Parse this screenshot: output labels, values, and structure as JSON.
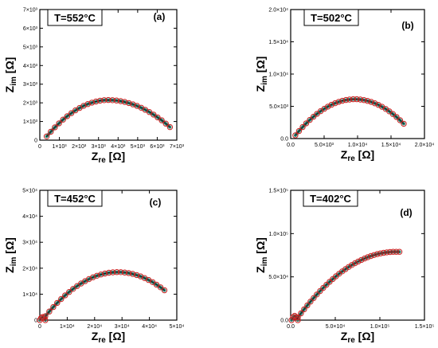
{
  "colors": {
    "marker_stroke": "#cc2222",
    "fit_line": "#2a8a7a",
    "axis": "#000000"
  },
  "chart_data": [
    {
      "type": "scatter",
      "panel_label": "(a)",
      "temperature_label": "T=552°C",
      "xlabel": {
        "main": "Z",
        "sub": "re",
        "unit": " [Ω]"
      },
      "ylabel": {
        "main": "Z",
        "sub": "im",
        "unit": " [Ω]"
      },
      "xlim": [
        0,
        7000
      ],
      "ylim": [
        0,
        7000
      ],
      "x_ticks": [
        0,
        1000,
        2000,
        3000,
        4000,
        5000,
        6000,
        7000
      ],
      "x_tick_labels": [
        "0",
        "1×10³",
        "2×10³",
        "3×10³",
        "4×10³",
        "5×10³",
        "6×10³",
        "7×10³"
      ],
      "y_ticks": [
        0,
        1000,
        2000,
        3000,
        4000,
        5000,
        6000,
        7000
      ],
      "y_tick_labels": [
        "0",
        "1×10³",
        "2×10³",
        "3×10³",
        "4×10³",
        "5×10³",
        "6×10³",
        "7×10³"
      ],
      "arc": {
        "x_start": 350,
        "x_end": 6650,
        "x_peak": 3500,
        "y_peak": 2150,
        "y_start": 200,
        "y_end": 700
      },
      "points": 30
    },
    {
      "type": "scatter",
      "panel_label": "(b)",
      "temperature_label": "T=502°C",
      "xlabel": {
        "main": "Z",
        "sub": "re",
        "unit": " [Ω]"
      },
      "ylabel": {
        "main": "Z",
        "sub": "im",
        "unit": " [Ω]"
      },
      "xlim": [
        0,
        20000
      ],
      "ylim": [
        0,
        20000
      ],
      "x_ticks": [
        0,
        5000,
        10000,
        15000,
        20000
      ],
      "x_tick_labels": [
        "0.0",
        "5.0×10³",
        "1.0×10⁴",
        "1.5×10⁴",
        "2.0×10⁴"
      ],
      "y_ticks": [
        0,
        5000,
        10000,
        15000,
        20000
      ],
      "y_tick_labels": [
        "0.0",
        "5.0×10³",
        "1.0×10⁴",
        "1.5×10⁴",
        "2.0×10⁴"
      ],
      "arc": {
        "x_start": 700,
        "x_end": 16900,
        "x_peak": 9600,
        "y_peak": 6100,
        "y_start": 500,
        "y_end": 2300
      },
      "points": 30
    },
    {
      "type": "scatter",
      "panel_label": "(c)",
      "temperature_label": "T=452°C",
      "xlabel": {
        "main": "Z",
        "sub": "re",
        "unit": " [Ω]"
      },
      "ylabel": {
        "main": "Z",
        "sub": "im",
        "unit": " [Ω]"
      },
      "xlim": [
        0,
        50000
      ],
      "ylim": [
        0,
        50000
      ],
      "x_ticks": [
        0,
        10000,
        20000,
        30000,
        40000,
        50000
      ],
      "x_tick_labels": [
        "0",
        "1×10⁴",
        "2×10⁴",
        "3×10⁴",
        "4×10⁴",
        "5×10⁴"
      ],
      "y_ticks": [
        0,
        10000,
        20000,
        30000,
        40000,
        50000
      ],
      "y_tick_labels": [
        "0",
        "1×10⁴",
        "2×10⁴",
        "3×10⁴",
        "4×10⁴",
        "5×10⁴"
      ],
      "arc": {
        "x_start": 2000,
        "x_end": 45500,
        "x_peak": 28500,
        "y_peak": 18500,
        "y_start": 1500,
        "y_end": 11500
      },
      "pre_arc": {
        "x_start": 0,
        "x_end": 2000,
        "y_peak": 1200
      },
      "points": 30
    },
    {
      "type": "scatter",
      "panel_label": "(d)",
      "temperature_label": "T=402°C",
      "xlabel": {
        "main": "Z",
        "sub": "re",
        "unit": " [Ω]"
      },
      "ylabel": {
        "main": "Z",
        "sub": "im",
        "unit": " [Ω]"
      },
      "xlim": [
        0,
        150000
      ],
      "ylim": [
        0,
        150000
      ],
      "x_ticks": [
        0,
        50000,
        100000,
        150000
      ],
      "x_tick_labels": [
        "0.0",
        "5.0×10⁴",
        "1.0×10⁵",
        "1.5×10⁵"
      ],
      "y_ticks": [
        0,
        50000,
        100000,
        150000
      ],
      "y_tick_labels": [
        "0.0",
        "5.0×10⁴",
        "1.0×10⁵",
        "1.5×10⁵"
      ],
      "arc": {
        "x_start": 8000,
        "x_end": 122000,
        "x_peak": 118000,
        "y_peak": 79000,
        "y_start": 3000,
        "y_end": 79000
      },
      "pre_arc": {
        "x_start": 1000,
        "x_end": 8000,
        "y_peak": 5000
      },
      "points": 32
    }
  ]
}
